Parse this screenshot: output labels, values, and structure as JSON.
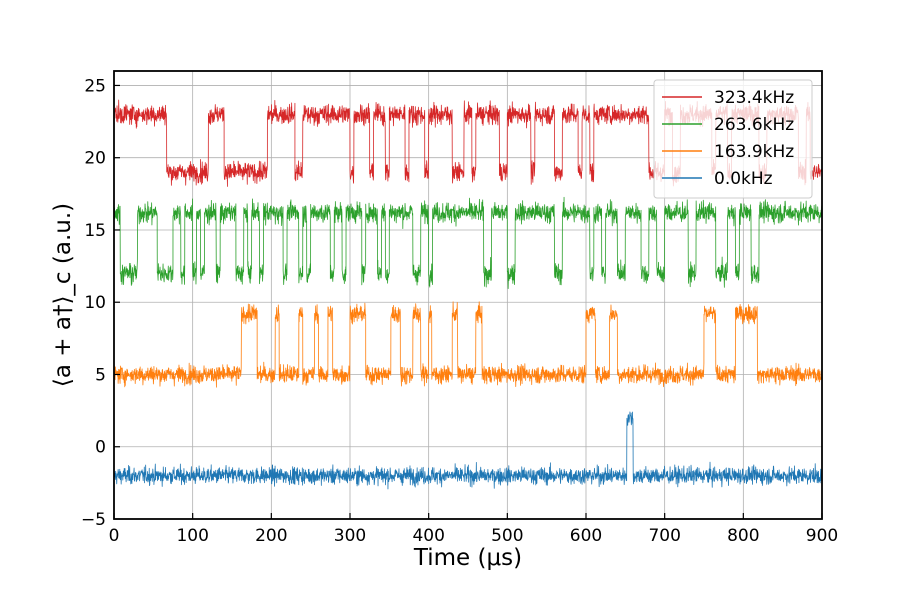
{
  "chart_data": {
    "type": "line",
    "xlabel": "Time (μs)",
    "ylabel": "⟨a + a†⟩_c  (a.u.)",
    "xlim": [
      0,
      900
    ],
    "ylim": [
      -5,
      26
    ],
    "xticks": [
      "0",
      "100",
      "200",
      "300",
      "400",
      "500",
      "600",
      "700",
      "800",
      "900"
    ],
    "yticks": [
      "−5",
      "0",
      "5",
      "10",
      "15",
      "20",
      "25"
    ],
    "grid": true,
    "legend_position": "top-right",
    "series": [
      {
        "name": "323.4kHz",
        "color": "#d62728",
        "low": 19,
        "high": 23,
        "noise": 0.9,
        "switch_times": [
          0,
          67,
          120,
          140,
          195,
          230,
          240,
          300,
          305,
          325,
          330,
          345,
          350,
          370,
          375,
          395,
          400,
          430,
          445,
          455,
          460,
          490,
          500,
          530,
          535,
          560,
          570,
          590,
          595,
          605,
          610,
          680,
          700,
          710,
          720,
          760,
          765,
          780,
          785,
          820,
          830,
          870,
          880,
          885,
          900
        ],
        "start_high": true
      },
      {
        "name": "263.6kHz",
        "color": "#2ca02c",
        "low": 12,
        "high": 16.2,
        "noise": 0.9,
        "switch_times": [
          0,
          8,
          30,
          55,
          75,
          85,
          90,
          100,
          105,
          110,
          115,
          130,
          135,
          155,
          165,
          170,
          175,
          185,
          190,
          215,
          220,
          235,
          240,
          245,
          250,
          275,
          280,
          290,
          295,
          315,
          320,
          335,
          340,
          345,
          350,
          380,
          390,
          400,
          405,
          470,
          480,
          500,
          510,
          560,
          570,
          605,
          610,
          620,
          625,
          640,
          650,
          670,
          680,
          690,
          700,
          730,
          740,
          765,
          780,
          790,
          795,
          810,
          820,
          900
        ],
        "start_high": true
      },
      {
        "name": "163.9kHz",
        "color": "#ff7f0e",
        "low": 5,
        "high": 9.2,
        "noise": 0.8,
        "switch_times": [
          0,
          162,
          182,
          205,
          210,
          235,
          240,
          255,
          260,
          272,
          278,
          300,
          320,
          352,
          364,
          380,
          390,
          400,
          404,
          430,
          437,
          460,
          468,
          600,
          612,
          630,
          640,
          750,
          765,
          790,
          818,
          900
        ],
        "start_high": false
      },
      {
        "name": "0.0kHz",
        "color": "#1f77b4",
        "low": -2,
        "high": 2,
        "noise": 0.75,
        "switch_times": [
          0,
          652,
          660,
          900
        ],
        "start_high": false
      }
    ]
  }
}
